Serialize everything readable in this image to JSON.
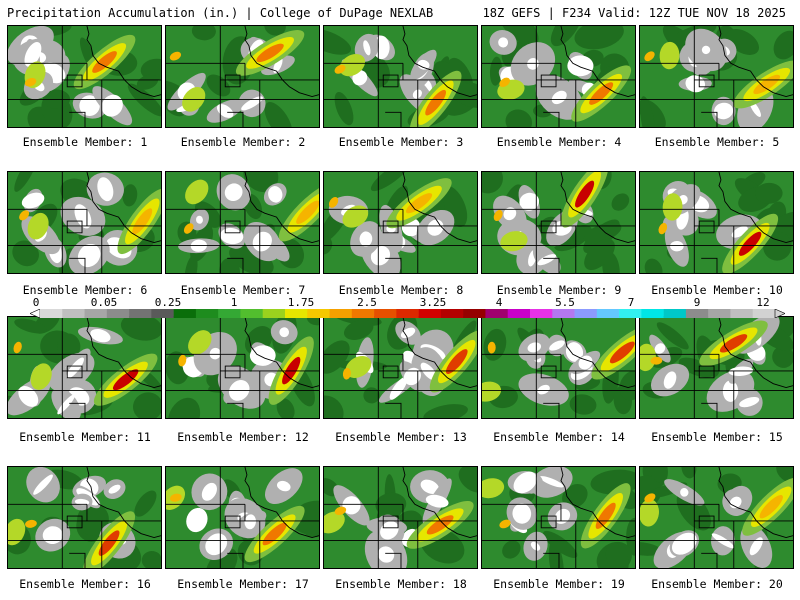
{
  "header": {
    "left": "Precipitation Accumulation (in.) | College of DuPage NEXLAB",
    "right": "18Z GEFS | F234 Valid: 12Z TUE NOV 18 2025"
  },
  "colorbar": {
    "ticks": [
      "0",
      "0.05",
      "0.25",
      "1",
      "1.75",
      "2.5",
      "3.25",
      "4",
      "5.5",
      "7",
      "9",
      "12"
    ],
    "colors": [
      "#d9d9d9",
      "#bfbfbf",
      "#a6a6a6",
      "#8c8c8c",
      "#737373",
      "#5a5a5a",
      "#0a6e0a",
      "#1e8c1e",
      "#34a834",
      "#52be2e",
      "#9ad21e",
      "#e6e600",
      "#f5c800",
      "#f5a000",
      "#f07800",
      "#e65000",
      "#dc2800",
      "#d20000",
      "#b40000",
      "#960000",
      "#a0006e",
      "#c800c8",
      "#e632e6",
      "#b478f0",
      "#8c9bff",
      "#64c8ff",
      "#32f0f0",
      "#00e6e6",
      "#00c8c8",
      "#8c8c8c",
      "#a6a6a6",
      "#bfbfbf",
      "#d2d2d2"
    ]
  },
  "panels": [
    {
      "label": "Ensemble Member: 1"
    },
    {
      "label": "Ensemble Member: 2"
    },
    {
      "label": "Ensemble Member: 3"
    },
    {
      "label": "Ensemble Member: 4"
    },
    {
      "label": "Ensemble Member: 5"
    },
    {
      "label": "Ensemble Member: 6"
    },
    {
      "label": "Ensemble Member: 7"
    },
    {
      "label": "Ensemble Member: 8"
    },
    {
      "label": "Ensemble Member: 9"
    },
    {
      "label": "Ensemble Member: 10"
    },
    {
      "label": "Ensemble Member: 11"
    },
    {
      "label": "Ensemble Member: 12"
    },
    {
      "label": "Ensemble Member: 13"
    },
    {
      "label": "Ensemble Member: 14"
    },
    {
      "label": "Ensemble Member: 15"
    },
    {
      "label": "Ensemble Member: 16"
    },
    {
      "label": "Ensemble Member: 17"
    },
    {
      "label": "Ensemble Member: 18"
    },
    {
      "label": "Ensemble Member: 19"
    },
    {
      "label": "Ensemble Member: 20"
    }
  ]
}
